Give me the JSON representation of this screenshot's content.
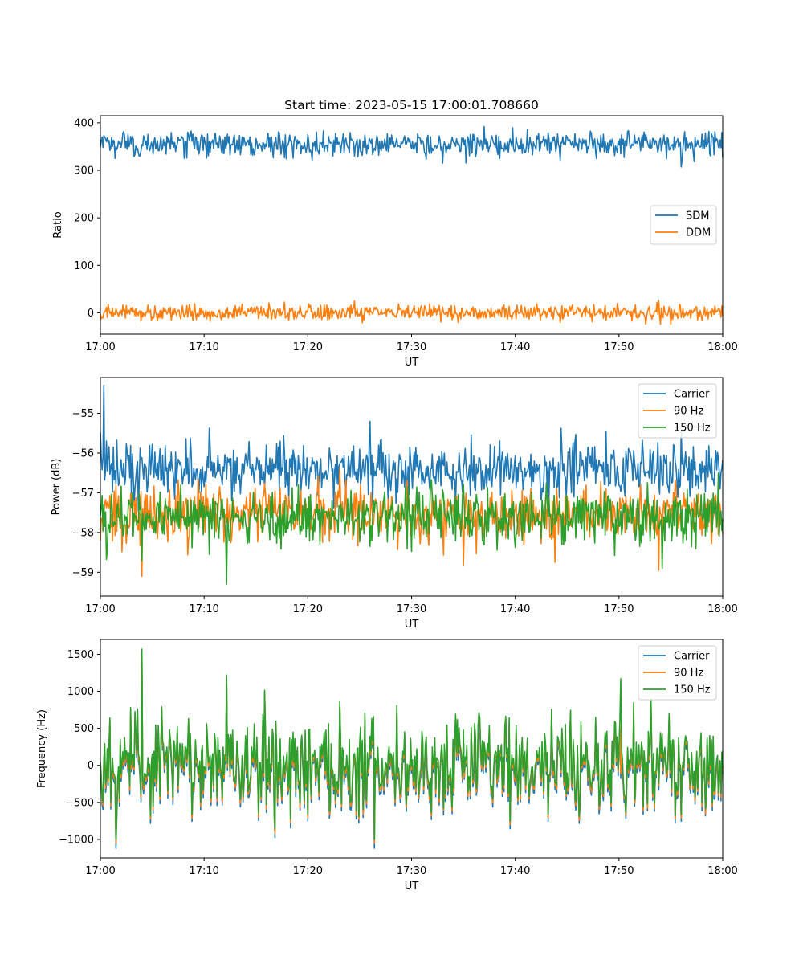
{
  "figure": {
    "title": "Start time: 2023-05-15 17:00:01.708660"
  },
  "chart_data": [
    {
      "type": "line",
      "title": "Start time: 2023-05-15 17:00:01.708660",
      "xlabel": "UT",
      "ylabel": "Ratio",
      "xlim": [
        "17:00",
        "18:00"
      ],
      "x_tick_labels": [
        "17:00",
        "17:10",
        "17:20",
        "17:30",
        "17:40",
        "17:50",
        "18:00"
      ],
      "ylim": [
        -45,
        415
      ],
      "y_ticks": [
        0,
        100,
        200,
        300,
        400
      ],
      "y_tick_labels": [
        "0",
        "100",
        "200",
        "300",
        "400"
      ],
      "grid": false,
      "legend": "center-right",
      "series": [
        {
          "name": "SDM",
          "color": "#1f77b4",
          "summary": {
            "mean": 355,
            "noise": 13,
            "min": 307,
            "max": 392
          },
          "spikes": [
            [
              "17:37",
              392
            ],
            [
              "17:56",
              307
            ],
            [
              "17:33",
              315
            ]
          ]
        },
        {
          "name": "DDM",
          "color": "#ff7f0e",
          "summary": {
            "mean": 0,
            "noise": 8,
            "min": -24,
            "max": 26
          },
          "spikes": [
            [
              "17:53.8",
              26
            ],
            [
              "17:55",
              -24
            ],
            [
              "17:24.5",
              25
            ]
          ]
        }
      ]
    },
    {
      "type": "line",
      "title": "",
      "xlabel": "UT",
      "ylabel": "Power (dB)",
      "xlim": [
        "17:00",
        "18:00"
      ],
      "x_tick_labels": [
        "17:00",
        "17:10",
        "17:20",
        "17:30",
        "17:40",
        "17:50",
        "18:00"
      ],
      "ylim": [
        -59.6,
        -54.1
      ],
      "y_ticks": [
        -59,
        -58,
        -57,
        -56,
        -55
      ],
      "y_tick_labels": [
        "−59",
        "−58",
        "−57",
        "−56",
        "−55"
      ],
      "grid": false,
      "legend": "top-right",
      "series": [
        {
          "name": "Carrier",
          "color": "#1f77b4",
          "summary": {
            "mean": -56.4,
            "noise": 0.35,
            "min": -57.5,
            "max": -54.3
          },
          "spikes": [
            [
              "17:00.3",
              -54.3
            ],
            [
              "17:26",
              -55.2
            ],
            [
              "17:56",
              -55.4
            ]
          ]
        },
        {
          "name": "90 Hz",
          "color": "#ff7f0e",
          "summary": {
            "mean": -57.5,
            "noise": 0.35,
            "min": -59.1,
            "max": -56.0
          },
          "spikes": [
            [
              "17:04",
              -59.1
            ],
            [
              "17:53.8",
              -58.95
            ],
            [
              "17:43.8",
              -58.75
            ]
          ]
        },
        {
          "name": "150 Hz",
          "color": "#2ca02c",
          "summary": {
            "mean": -57.6,
            "noise": 0.35,
            "min": -59.3,
            "max": -56.3
          },
          "spikes": [
            [
              "17:12.2",
              -59.3
            ],
            [
              "17:04",
              -58.7
            ],
            [
              "17:10.5",
              -58.55
            ]
          ]
        }
      ]
    },
    {
      "type": "line",
      "title": "",
      "xlabel": "UT",
      "ylabel": "Frequency (Hz)",
      "xlim": [
        "17:00",
        "18:00"
      ],
      "x_tick_labels": [
        "17:00",
        "17:10",
        "17:20",
        "17:30",
        "17:40",
        "17:50",
        "18:00"
      ],
      "ylim": [
        -1250,
        1700
      ],
      "y_ticks": [
        -1000,
        -500,
        0,
        500,
        1000,
        1500
      ],
      "y_tick_labels": [
        "−1000",
        "−500",
        "0",
        "500",
        "1000",
        "1500"
      ],
      "grid": false,
      "legend": "top-right",
      "series": [
        {
          "name": "Carrier",
          "color": "#1f77b4",
          "summary": {
            "mean": -20,
            "noise": 330,
            "min": -1120,
            "max": 1540
          },
          "offset": -80,
          "spikes": [
            [
              "17:01.5",
              -1120
            ],
            [
              "17:04",
              1540
            ],
            [
              "17:12.2",
              1180
            ]
          ]
        },
        {
          "name": "90 Hz",
          "color": "#ff7f0e",
          "summary": {
            "mean": 10,
            "noise": 330,
            "min": -1050,
            "max": 1560
          },
          "offset": -40,
          "spikes": [
            [
              "17:01.5",
              -1050
            ],
            [
              "17:04",
              1560
            ],
            [
              "17:12.2",
              1200
            ]
          ]
        },
        {
          "name": "150 Hz",
          "color": "#2ca02c",
          "summary": {
            "mean": 40,
            "noise": 330,
            "min": -1000,
            "max": 1570
          },
          "offset": 0,
          "spikes": [
            [
              "17:01.5",
              -1000
            ],
            [
              "17:04",
              1570
            ],
            [
              "17:12.2",
              1220
            ],
            [
              "17:50.2",
              1170
            ]
          ]
        }
      ]
    }
  ]
}
